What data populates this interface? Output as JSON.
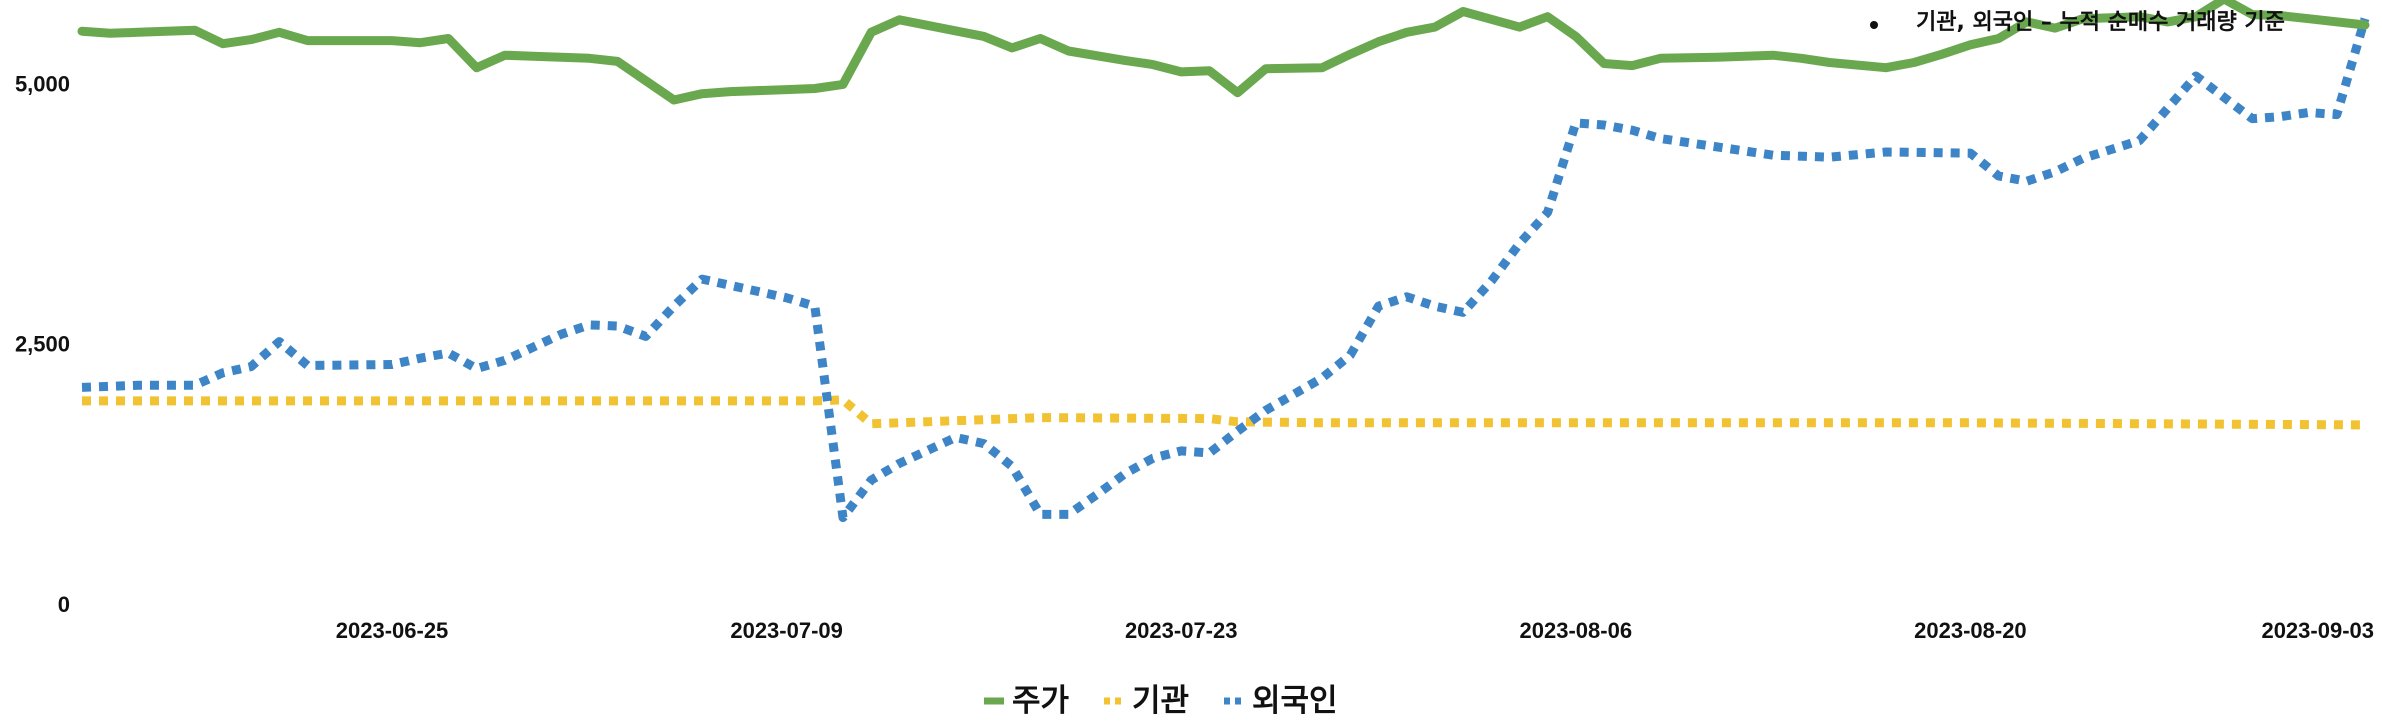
{
  "chart_data": {
    "type": "line",
    "title": "",
    "annotation": "기관, 외국인 – 누적 순매수 거래량 기준",
    "xlabel": "",
    "ylabel": "",
    "ylim": [
      0,
      5800
    ],
    "y_ticks": [
      {
        "value": 0,
        "label": "0"
      },
      {
        "value": 2500,
        "label": "2,500"
      },
      {
        "value": 5000,
        "label": "5,000"
      }
    ],
    "x_range": [
      "2023-06-14",
      "2023-09-03"
    ],
    "x_ticks": [
      "2023-06-25",
      "2023-07-09",
      "2023-07-23",
      "2023-08-06",
      "2023-08-20",
      "2023-09-03"
    ],
    "legend_position": "bottom",
    "grid": false,
    "series": [
      {
        "name": "주가",
        "color": "#6aa84f",
        "style": "solid",
        "x": [
          "2023-06-14",
          "2023-06-15",
          "2023-06-16",
          "2023-06-18",
          "2023-06-19",
          "2023-06-20",
          "2023-06-21",
          "2023-06-22",
          "2023-06-23",
          "2023-06-25",
          "2023-06-26",
          "2023-06-27",
          "2023-06-28",
          "2023-06-29",
          "2023-06-30",
          "2023-07-02",
          "2023-07-03",
          "2023-07-05",
          "2023-07-06",
          "2023-07-07",
          "2023-07-09",
          "2023-07-10",
          "2023-07-11",
          "2023-07-12",
          "2023-07-13",
          "2023-07-16",
          "2023-07-17",
          "2023-07-18",
          "2023-07-19",
          "2023-07-21",
          "2023-07-22",
          "2023-07-23",
          "2023-07-24",
          "2023-07-25",
          "2023-07-26",
          "2023-07-28",
          "2023-07-29",
          "2023-07-30",
          "2023-07-31",
          "2023-08-01",
          "2023-08-02",
          "2023-08-04",
          "2023-08-05",
          "2023-08-06",
          "2023-08-07",
          "2023-08-08",
          "2023-08-09",
          "2023-08-11",
          "2023-08-13",
          "2023-08-14",
          "2023-08-15",
          "2023-08-17",
          "2023-08-18",
          "2023-08-19",
          "2023-08-20",
          "2023-08-21",
          "2023-08-22",
          "2023-08-23",
          "2023-08-24",
          "2023-08-25",
          "2023-08-26",
          "2023-08-27",
          "2023-08-28",
          "2023-08-29",
          "2023-08-30",
          "2023-08-31",
          "2023-09-01",
          "2023-09-03"
        ],
        "values": [
          5500,
          5480,
          5490,
          5510,
          5380,
          5420,
          5490,
          5410,
          5410,
          5410,
          5390,
          5430,
          5150,
          5270,
          5260,
          5240,
          5210,
          4840,
          4900,
          4920,
          4940,
          4950,
          4990,
          5490,
          5610,
          5450,
          5340,
          5430,
          5310,
          5220,
          5180,
          5110,
          5120,
          4910,
          5140,
          5150,
          5280,
          5400,
          5490,
          5540,
          5690,
          5540,
          5640,
          5450,
          5190,
          5170,
          5240,
          5250,
          5270,
          5240,
          5200,
          5150,
          5200,
          5280,
          5370,
          5430,
          5590,
          5530,
          5620,
          5630,
          5640,
          5590,
          5640,
          5810,
          5660,
          5650,
          5620,
          5560
        ]
      },
      {
        "name": "기관",
        "color": "#f1c232",
        "style": "dotted",
        "x": [
          "2023-06-14",
          "2023-07-10",
          "2023-07-11",
          "2023-07-12",
          "2023-07-15",
          "2023-07-18",
          "2023-07-24",
          "2023-07-25",
          "2023-07-28",
          "2023-08-06",
          "2023-08-20",
          "2023-09-03"
        ],
        "values": [
          1950,
          1950,
          1960,
          1730,
          1760,
          1790,
          1780,
          1750,
          1740,
          1740,
          1740,
          1720
        ]
      },
      {
        "name": "외국인",
        "color": "#3d85c6",
        "style": "dotted",
        "x": [
          "2023-06-14",
          "2023-06-16",
          "2023-06-18",
          "2023-06-19",
          "2023-06-20",
          "2023-06-21",
          "2023-06-22",
          "2023-06-25",
          "2023-06-26",
          "2023-06-27",
          "2023-06-28",
          "2023-06-29",
          "2023-07-01",
          "2023-07-02",
          "2023-07-03",
          "2023-07-04",
          "2023-07-05",
          "2023-07-06",
          "2023-07-09",
          "2023-07-10",
          "2023-07-11",
          "2023-07-12",
          "2023-07-13",
          "2023-07-15",
          "2023-07-16",
          "2023-07-17",
          "2023-07-18",
          "2023-07-19",
          "2023-07-20",
          "2023-07-21",
          "2023-07-22",
          "2023-07-23",
          "2023-07-24",
          "2023-07-25",
          "2023-07-26",
          "2023-07-28",
          "2023-07-29",
          "2023-07-30",
          "2023-07-31",
          "2023-08-01",
          "2023-08-02",
          "2023-08-03",
          "2023-08-04",
          "2023-08-05",
          "2023-08-06",
          "2023-08-07",
          "2023-08-08",
          "2023-08-09",
          "2023-08-13",
          "2023-08-15",
          "2023-08-17",
          "2023-08-20",
          "2023-08-21",
          "2023-08-22",
          "2023-08-23",
          "2023-08-24",
          "2023-08-26",
          "2023-08-28",
          "2023-08-30",
          "2023-08-31",
          "2023-09-01",
          "2023-09-02",
          "2023-09-03"
        ],
        "values": [
          2080,
          2100,
          2100,
          2220,
          2280,
          2520,
          2290,
          2300,
          2360,
          2410,
          2260,
          2340,
          2590,
          2680,
          2670,
          2570,
          2860,
          3120,
          2940,
          2860,
          830,
          1190,
          1350,
          1600,
          1540,
          1320,
          860,
          860,
          1050,
          1250,
          1400,
          1470,
          1450,
          1660,
          1860,
          2170,
          2390,
          2860,
          2950,
          2860,
          2800,
          3100,
          3460,
          3760,
          4620,
          4600,
          4550,
          4470,
          4310,
          4290,
          4340,
          4330,
          4110,
          4060,
          4150,
          4280,
          4450,
          5070,
          4660,
          4680,
          4720,
          4700,
          5620
        ]
      }
    ]
  }
}
